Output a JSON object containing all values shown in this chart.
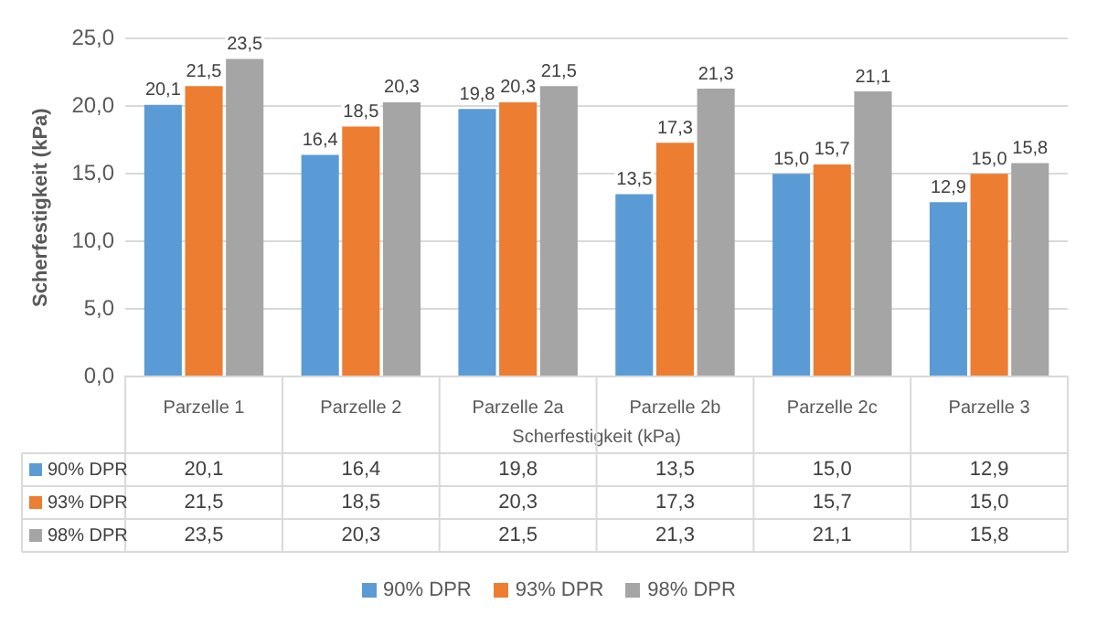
{
  "chart_data": {
    "type": "bar",
    "xlabel": "Scherfestigkeit (kPa)",
    "ylabel": "Scherfestigkeit (kPa)",
    "categories": [
      "Parzelle 1",
      "Parzelle 2",
      "Parzelle 2a",
      "Parzelle 2b",
      "Parzelle 2c",
      "Parzelle 3"
    ],
    "series": [
      {
        "name": "90% DPR",
        "color": "#5b9bd5",
        "values": [
          20.1,
          16.4,
          19.8,
          13.5,
          15.0,
          12.9
        ],
        "value_labels": [
          "20,1",
          "16,4",
          "19,8",
          "13,5",
          "15,0",
          "12,9"
        ]
      },
      {
        "name": "93% DPR",
        "color": "#ed7d31",
        "values": [
          21.5,
          18.5,
          20.3,
          17.3,
          15.7,
          15.0
        ],
        "value_labels": [
          "21,5",
          "18,5",
          "20,3",
          "17,3",
          "15,7",
          "15,0"
        ]
      },
      {
        "name": "98% DPR",
        "color": "#a5a5a5",
        "values": [
          23.5,
          20.3,
          21.5,
          21.3,
          21.1,
          15.8
        ],
        "value_labels": [
          "23,5",
          "20,3",
          "21,5",
          "21,3",
          "21,1",
          "15,8"
        ]
      }
    ],
    "ylim": [
      0,
      25
    ],
    "yticks": [
      {
        "value": 0,
        "label": "0,0"
      },
      {
        "value": 5,
        "label": "5,0"
      },
      {
        "value": 10,
        "label": "10,0"
      },
      {
        "value": 15,
        "label": "15,0"
      },
      {
        "value": 20,
        "label": "20,0"
      },
      {
        "value": 25,
        "label": "25,0"
      }
    ],
    "grid": "y",
    "legend": "bottom"
  }
}
